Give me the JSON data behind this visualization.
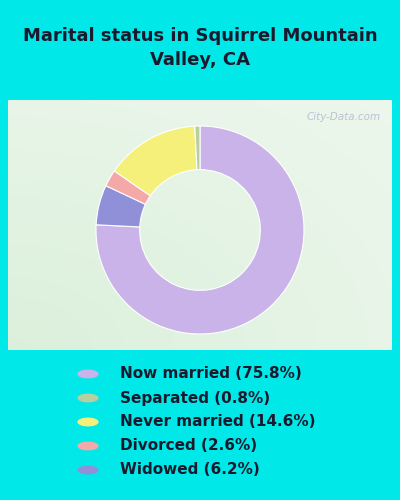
{
  "title": "Marital status in Squirrel Mountain\nValley, CA",
  "categories": [
    "Now married",
    "Separated",
    "Never married",
    "Divorced",
    "Widowed"
  ],
  "values": [
    75.8,
    0.8,
    14.6,
    2.6,
    6.2
  ],
  "colors": [
    "#c9b3e8",
    "#b8cfa0",
    "#f5f07a",
    "#f5a8a8",
    "#9090d8"
  ],
  "legend_labels": [
    "Now married (75.8%)",
    "Separated (0.8%)",
    "Never married (14.6%)",
    "Divorced (2.6%)",
    "Widowed (6.2%)"
  ],
  "bg_outer": "#00e8e8",
  "title_color": "#1a1a2e",
  "title_fontsize": 13,
  "legend_fontsize": 11,
  "watermark": "City-Data.com"
}
